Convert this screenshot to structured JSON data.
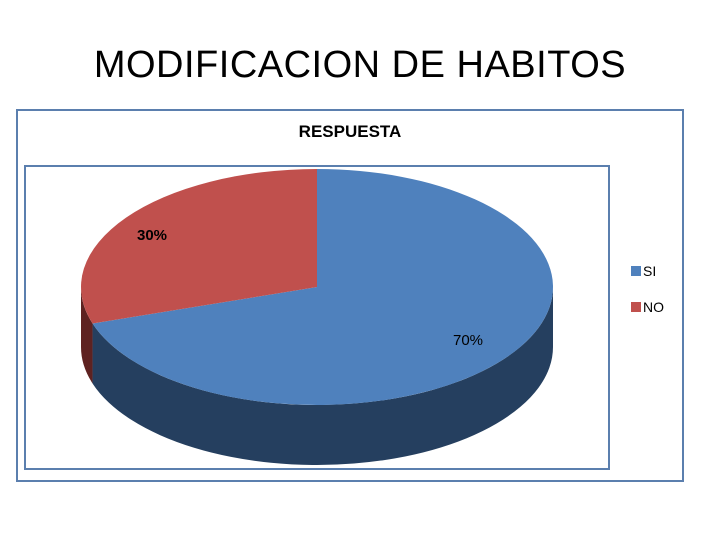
{
  "slide": {
    "title": "MODIFICACION DE HABITOS"
  },
  "chart_data": {
    "type": "pie",
    "title": "RESPUESTA",
    "categories": [
      "SI",
      "NO"
    ],
    "values": [
      70,
      30
    ],
    "labels": [
      "70%",
      "30%"
    ],
    "colors": [
      "#4f81bd",
      "#c0504d"
    ],
    "side_colors": [
      "#253f5f",
      "#5e2221"
    ],
    "legend_position": "right",
    "three_d": true
  }
}
